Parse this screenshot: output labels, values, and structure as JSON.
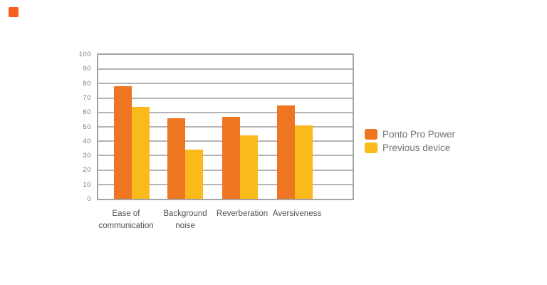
{
  "corner_mark": {
    "color": "#f4601c"
  },
  "chart_data": {
    "type": "bar",
    "title": "",
    "categories": [
      "Ease of communication",
      "Background noise",
      "Reverberation",
      "Aversiveness"
    ],
    "category_label_lines": [
      [
        "Ease of",
        "communication"
      ],
      [
        "Background",
        "noise"
      ],
      [
        "Reverberation"
      ],
      [
        "Aversiveness"
      ]
    ],
    "series": [
      {
        "name": "Ponto Pro Power",
        "color": "#ee7522",
        "values": [
          78,
          56,
          57,
          65
        ]
      },
      {
        "name": "Previous device",
        "color": "#fbba1c",
        "values": [
          64,
          34,
          44,
          51
        ]
      }
    ],
    "ylim": [
      0,
      100
    ],
    "ytick_step": 10,
    "yticks": [
      0,
      10,
      20,
      30,
      40,
      50,
      60,
      70,
      80,
      90,
      100
    ],
    "grid": "horizontal",
    "legend_position": "right",
    "axis_color": "#a6a5a3",
    "gridline_color": "#b5b4b2",
    "tick_label_color": "#7e7568",
    "category_label_color": "#4d5156",
    "legend_text_color": "#6f757a",
    "background_color": "#ffffff"
  }
}
